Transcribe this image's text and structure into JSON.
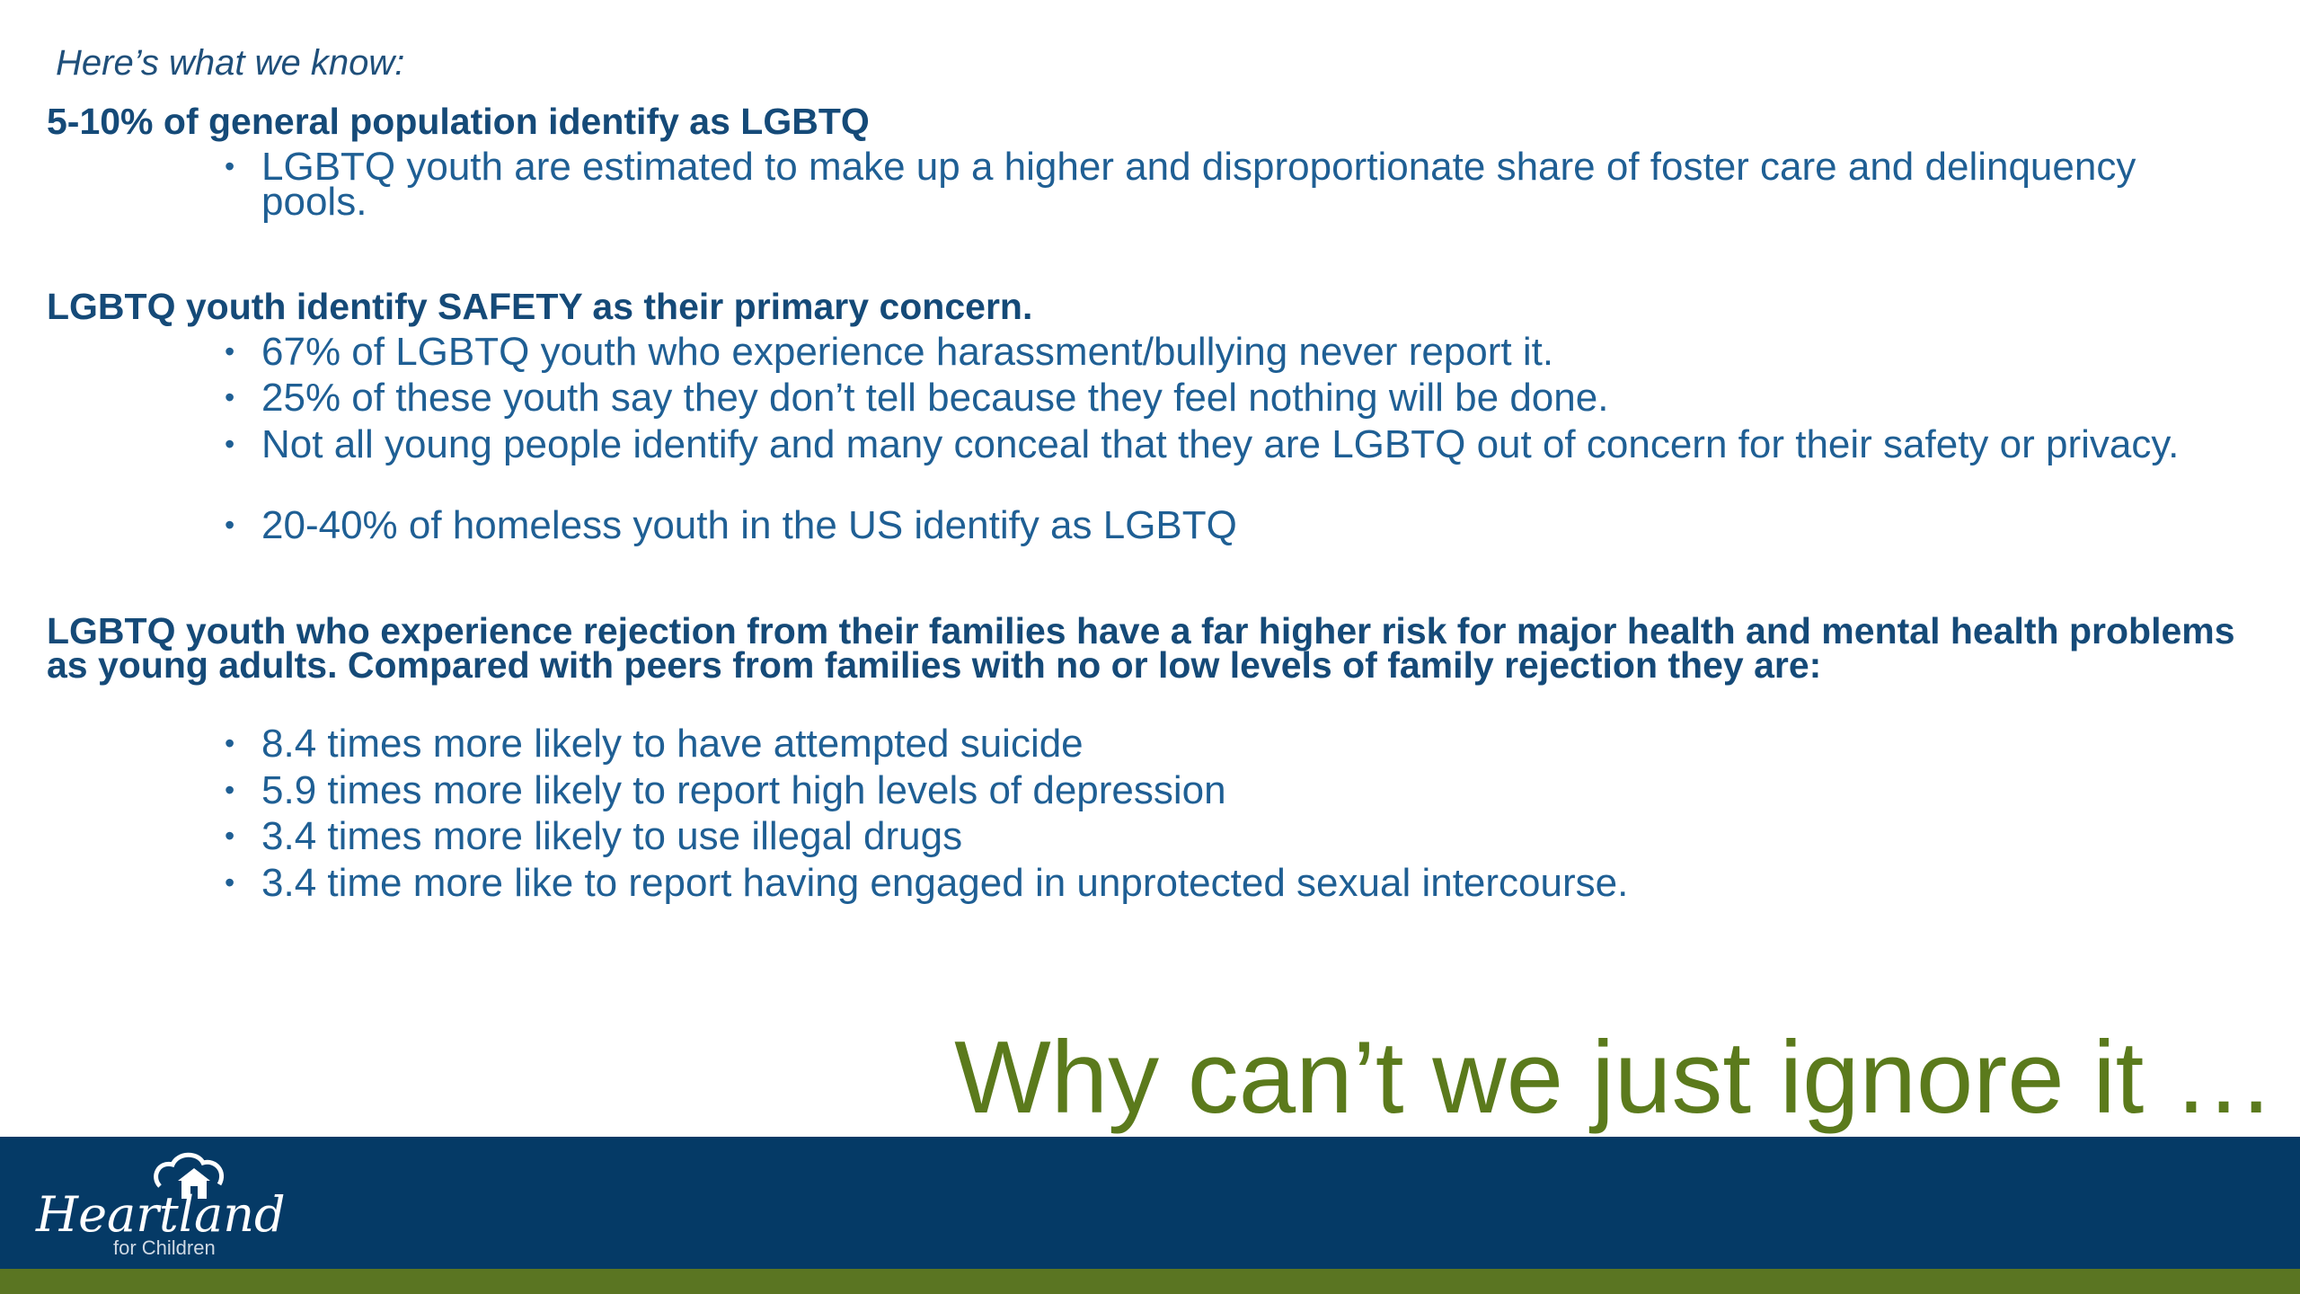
{
  "intro": "Here’s what we know:",
  "sections": [
    {
      "heading": "5-10% of general population identify as LGBTQ",
      "bullets": [
        "LGBTQ youth are estimated to make up a higher and disproportionate share of foster care and delinquency pools."
      ]
    },
    {
      "heading": "LGBTQ youth identify SAFETY as their primary concern.",
      "bullets": [
        "67% of LGBTQ youth who experience harassment/bullying never report it.",
        "25% of these youth say they don’t tell because they feel nothing will be done.",
        "Not all young people identify and many conceal that they are LGBTQ out of concern for their safety or privacy.",
        "20-40% of homeless youth in the US identify as LGBTQ"
      ]
    },
    {
      "heading": "LGBTQ youth who experience rejection from their families have a far higher risk for major health and mental health problems as young adults. Compared with peers from families with no or low levels of family rejection they are:",
      "bullets": [
        "8.4 times more likely to have attempted suicide",
        "5.9 times more likely to report high levels of depression",
        "3.4 times more likely to use illegal drugs",
        "3.4 time more like to report  having engaged in unprotected sexual intercourse."
      ]
    }
  ],
  "title": "Why can’t we just ignore it …",
  "logo": {
    "name": "Heartland",
    "tagline": "for Children"
  }
}
